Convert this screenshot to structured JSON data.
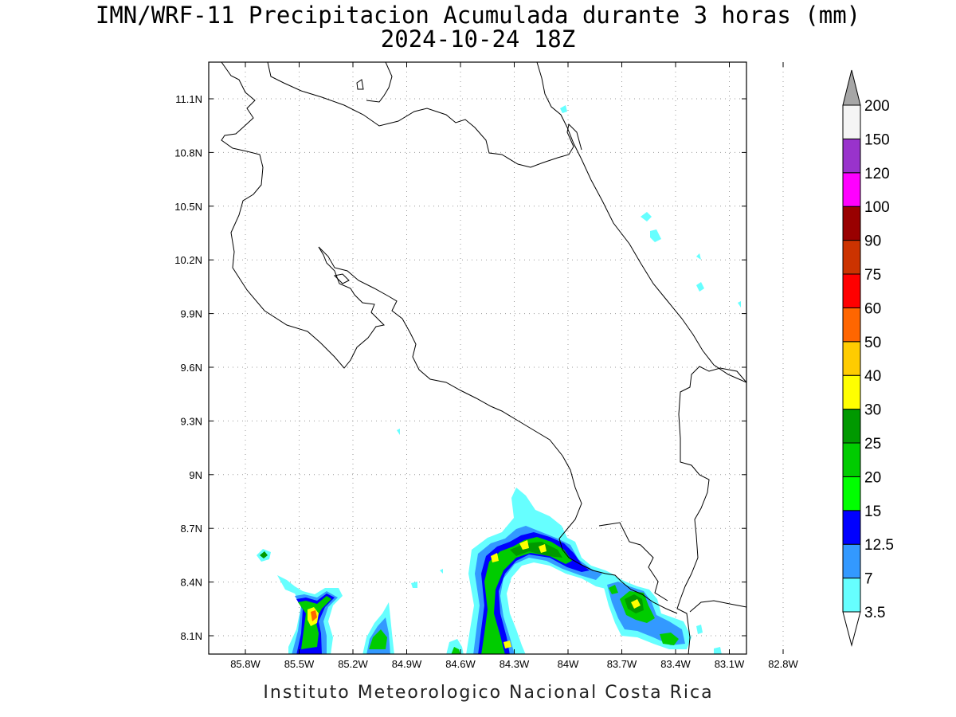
{
  "title": {
    "line1": "IMN/WRF-11 Precipitacion Acumulada durante 3 horas (mm)",
    "line2": "2024-10-24 18Z"
  },
  "credit": "Instituto Meteorologico Nacional Costa Rica",
  "axes": {
    "x_ticks": [
      "85.8W",
      "85.5W",
      "85.2W",
      "84.9W",
      "84.6W",
      "84.3W",
      "84W",
      "83.7W",
      "83.4W",
      "83.1W",
      "82.8W"
    ],
    "y_ticks": [
      "11.1N",
      "10.8N",
      "10.5N",
      "10.2N",
      "9.9N",
      "9.6N",
      "9.3N",
      "9N",
      "8.7N",
      "8.4N",
      "8.1N"
    ],
    "grid": "dotted"
  },
  "colorbar": {
    "labels": [
      "3.5",
      "7",
      "12.5",
      "15",
      "20",
      "25",
      "30",
      "40",
      "50",
      "60",
      "75",
      "90",
      "100",
      "120",
      "150",
      "200"
    ],
    "colors": [
      "#66ffff",
      "#3399ff",
      "#0000ff",
      "#00ff00",
      "#00cc00",
      "#009900",
      "#ffff00",
      "#ffcc00",
      "#ff6600",
      "#ff0000",
      "#cc3300",
      "#990000",
      "#ff00ff",
      "#9933cc",
      "#f5f5f5"
    ],
    "overflow_color": "#a6a6a6"
  }
}
